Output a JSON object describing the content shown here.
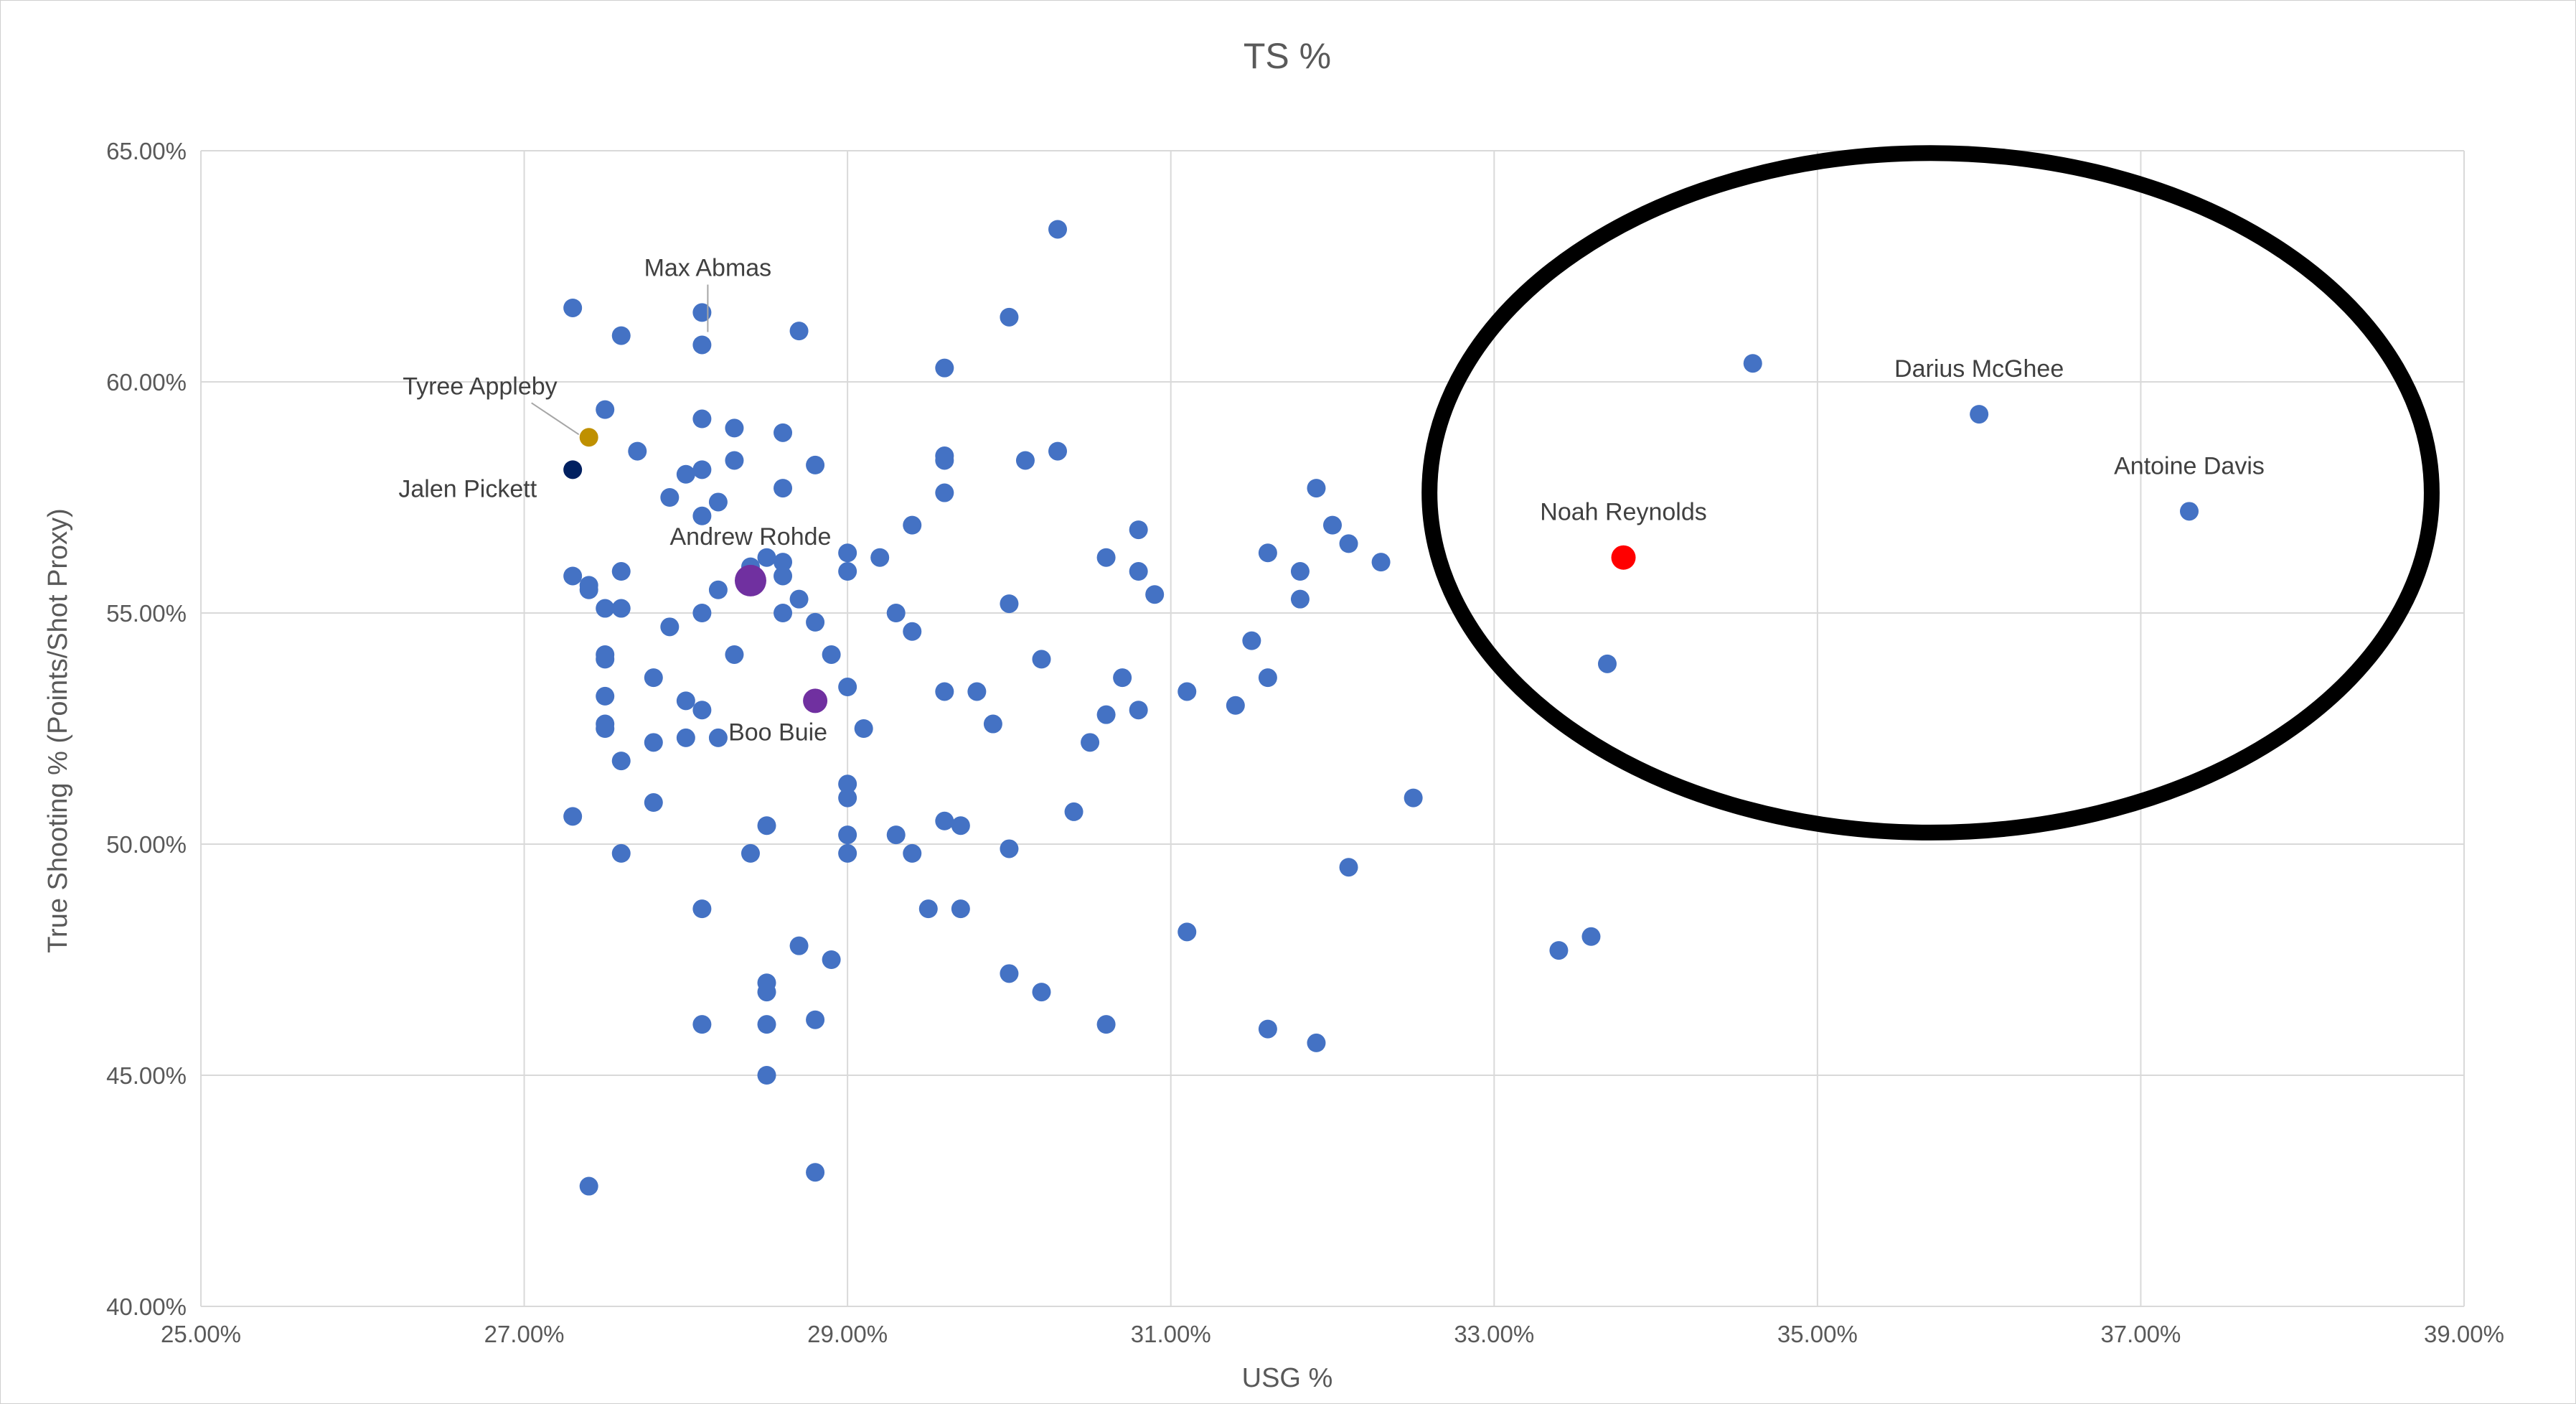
{
  "chart_data": {
    "type": "scatter",
    "title": "TS %",
    "xlabel": "USG %",
    "ylabel": "True Shooting % (Points/Shot Proxy)",
    "xlim": [
      25.0,
      39.0
    ],
    "ylim": [
      40.0,
      65.0
    ],
    "x_ticks": [
      25,
      27,
      29,
      31,
      33,
      35,
      37,
      39
    ],
    "y_ticks": [
      40,
      45,
      50,
      55,
      60,
      65
    ],
    "x_tick_labels": [
      "25.00%",
      "27.00%",
      "29.00%",
      "31.00%",
      "33.00%",
      "35.00%",
      "37.00%",
      "39.00%"
    ],
    "y_tick_labels": [
      "40.00%",
      "45.00%",
      "50.00%",
      "55.00%",
      "60.00%",
      "65.00%"
    ],
    "grid": true,
    "legend": "none",
    "colors": {
      "default": "#4472C4",
      "highlight_red": "#FF0000",
      "highlight_purple": "#7030A0",
      "highlight_gold": "#BF9000",
      "highlight_navy": "#002060",
      "ellipse": "#000000"
    },
    "annotation_ellipse": {
      "center_x": 35.7,
      "center_y": 57.6,
      "semi_axis_x": 3.1,
      "semi_axis_y": 7.35,
      "color": "#000000"
    },
    "labeled_points": [
      {
        "label": "Max Abmas",
        "x": 28.1,
        "y": 60.8,
        "color": "#4472C4",
        "marker": "normal"
      },
      {
        "label": "Tyree Appleby",
        "x": 27.4,
        "y": 58.8,
        "color": "#BF9000",
        "marker": "normal"
      },
      {
        "label": "Jalen Pickett",
        "x": 27.3,
        "y": 58.1,
        "color": "#002060",
        "marker": "normal"
      },
      {
        "label": "Andrew Rohde",
        "x": 28.4,
        "y": 55.7,
        "color": "#7030A0",
        "marker": "large"
      },
      {
        "label": "Boo Buie",
        "x": 28.8,
        "y": 53.1,
        "color": "#7030A0",
        "marker": "medium"
      },
      {
        "label": "Noah Reynolds",
        "x": 33.8,
        "y": 56.2,
        "color": "#FF0000",
        "marker": "medium"
      },
      {
        "label": "Darius McGhee",
        "x": 36.0,
        "y": 59.3,
        "color": "#4472C4",
        "marker": "normal"
      },
      {
        "label": "Antoine Davis",
        "x": 37.3,
        "y": 57.2,
        "color": "#4472C4",
        "marker": "normal"
      }
    ],
    "points": [
      [
        27.3,
        61.6
      ],
      [
        27.6,
        61.0
      ],
      [
        28.1,
        61.5
      ],
      [
        28.7,
        61.1
      ],
      [
        30.0,
        61.4
      ],
      [
        30.3,
        63.3
      ],
      [
        29.6,
        60.3
      ],
      [
        27.5,
        59.4
      ],
      [
        28.1,
        59.2
      ],
      [
        28.3,
        59.0
      ],
      [
        28.6,
        58.9
      ],
      [
        27.7,
        58.5
      ],
      [
        28.3,
        58.3
      ],
      [
        28.8,
        58.2
      ],
      [
        28.1,
        58.1
      ],
      [
        28.0,
        58.0
      ],
      [
        27.9,
        57.5
      ],
      [
        28.6,
        57.7
      ],
      [
        28.2,
        57.4
      ],
      [
        28.1,
        57.1
      ],
      [
        29.6,
        58.4
      ],
      [
        29.6,
        58.3
      ],
      [
        30.3,
        58.5
      ],
      [
        30.1,
        58.3
      ],
      [
        29.6,
        57.6
      ],
      [
        29.4,
        56.9
      ],
      [
        27.3,
        55.8
      ],
      [
        27.4,
        55.6
      ],
      [
        27.4,
        55.5
      ],
      [
        27.6,
        55.9
      ],
      [
        27.5,
        55.1
      ],
      [
        27.6,
        55.1
      ],
      [
        28.2,
        55.5
      ],
      [
        28.1,
        55.0
      ],
      [
        28.5,
        56.2
      ],
      [
        28.6,
        56.1
      ],
      [
        28.6,
        55.8
      ],
      [
        28.4,
        56.0
      ],
      [
        28.4,
        55.6
      ],
      [
        28.7,
        55.3
      ],
      [
        28.6,
        55.0
      ],
      [
        28.8,
        54.8
      ],
      [
        29.0,
        56.3
      ],
      [
        29.0,
        55.9
      ],
      [
        29.2,
        56.2
      ],
      [
        30.0,
        55.2
      ],
      [
        29.3,
        55.0
      ],
      [
        29.4,
        54.6
      ],
      [
        27.9,
        54.7
      ],
      [
        27.5,
        54.1
      ],
      [
        27.5,
        54.0
      ],
      [
        27.8,
        53.6
      ],
      [
        27.5,
        53.2
      ],
      [
        28.0,
        53.1
      ],
      [
        28.1,
        52.9
      ],
      [
        27.5,
        52.6
      ],
      [
        27.5,
        52.5
      ],
      [
        27.8,
        52.2
      ],
      [
        28.0,
        52.3
      ],
      [
        28.2,
        52.3
      ],
      [
        27.6,
        51.8
      ],
      [
        27.8,
        50.9
      ],
      [
        27.3,
        50.6
      ],
      [
        28.3,
        54.1
      ],
      [
        28.9,
        54.1
      ],
      [
        29.0,
        53.4
      ],
      [
        29.1,
        52.5
      ],
      [
        29.0,
        51.3
      ],
      [
        29.0,
        51.0
      ],
      [
        28.5,
        50.4
      ],
      [
        29.0,
        50.2
      ],
      [
        29.3,
        50.2
      ],
      [
        29.0,
        49.8
      ],
      [
        29.4,
        49.8
      ],
      [
        28.4,
        49.8
      ],
      [
        27.6,
        49.8
      ],
      [
        29.6,
        53.3
      ],
      [
        29.8,
        53.3
      ],
      [
        29.9,
        52.6
      ],
      [
        29.6,
        50.5
      ],
      [
        29.7,
        50.4
      ],
      [
        30.0,
        49.9
      ],
      [
        30.2,
        54.0
      ],
      [
        30.4,
        50.7
      ],
      [
        30.5,
        52.2
      ],
      [
        30.6,
        52.8
      ],
      [
        30.6,
        56.2
      ],
      [
        30.8,
        56.8
      ],
      [
        30.8,
        55.9
      ],
      [
        30.9,
        55.4
      ],
      [
        30.7,
        53.6
      ],
      [
        30.8,
        52.9
      ],
      [
        31.1,
        53.3
      ],
      [
        31.4,
        53.0
      ],
      [
        31.5,
        54.4
      ],
      [
        31.6,
        53.6
      ],
      [
        31.6,
        56.3
      ],
      [
        31.8,
        55.9
      ],
      [
        31.8,
        55.3
      ],
      [
        31.9,
        57.7
      ],
      [
        32.0,
        56.9
      ],
      [
        32.1,
        56.5
      ],
      [
        32.3,
        56.1
      ],
      [
        32.5,
        51.0
      ],
      [
        32.1,
        49.5
      ],
      [
        28.1,
        48.6
      ],
      [
        28.7,
        47.8
      ],
      [
        28.9,
        47.5
      ],
      [
        28.5,
        47.0
      ],
      [
        28.5,
        46.8
      ],
      [
        28.1,
        46.1
      ],
      [
        28.5,
        46.1
      ],
      [
        28.8,
        46.2
      ],
      [
        28.5,
        45.0
      ],
      [
        29.5,
        48.6
      ],
      [
        29.7,
        48.6
      ],
      [
        30.0,
        47.2
      ],
      [
        30.2,
        46.8
      ],
      [
        30.6,
        46.1
      ],
      [
        31.1,
        48.1
      ],
      [
        31.6,
        46.0
      ],
      [
        31.9,
        45.7
      ],
      [
        27.4,
        42.6
      ],
      [
        28.8,
        42.9
      ],
      [
        33.4,
        47.7
      ],
      [
        33.6,
        48.0
      ],
      [
        33.7,
        53.9
      ],
      [
        34.6,
        60.4
      ]
    ]
  }
}
